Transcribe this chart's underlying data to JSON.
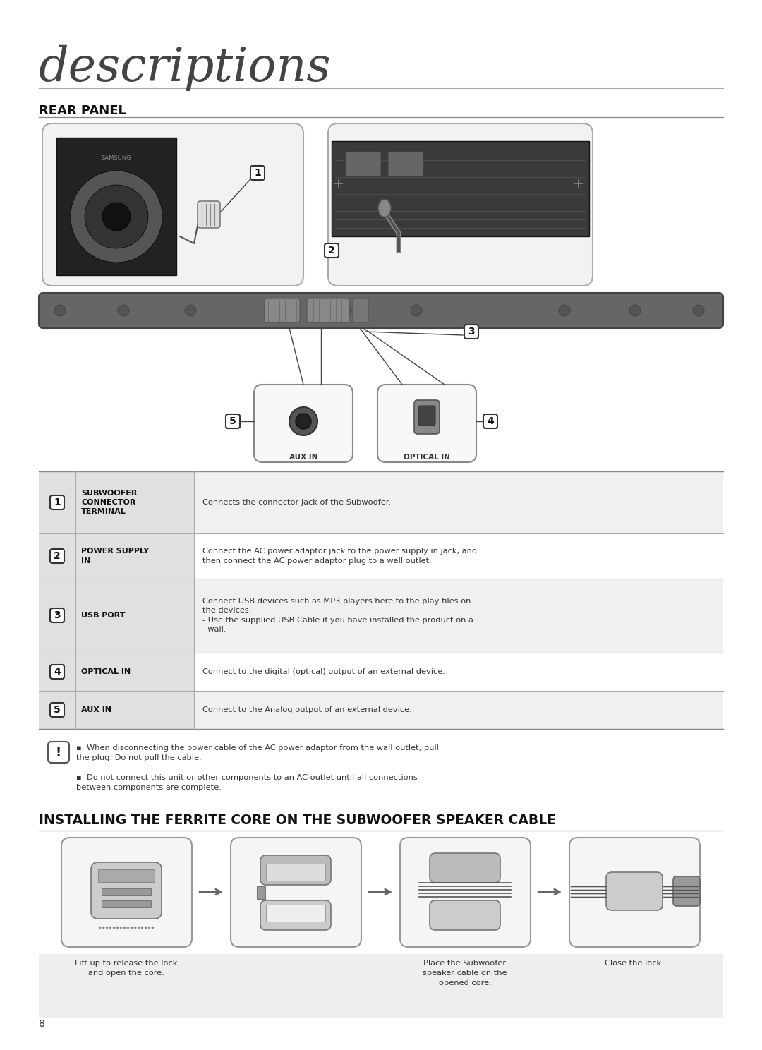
{
  "bg_color": "#ffffff",
  "title_main": "descriptions",
  "title_main_fontsize": 48,
  "title_main_color": "#444444",
  "section1_title": "REAR PANEL",
  "section2_title": "INSTALLING THE FERRITE CORE ON THE SUBWOOFER SPEAKER CABLE",
  "table_rows": [
    {
      "num": "1",
      "label": "SUBWOOFER\nCONNECTOR\nTERMINAL",
      "desc": "Connects the connector jack of the Subwoofer."
    },
    {
      "num": "2",
      "label": "POWER SUPPLY\nIN",
      "desc": "Connect the AC power adaptor jack to the power supply in jack, and\nthen connect the AC power adaptor plug to a wall outlet."
    },
    {
      "num": "3",
      "label": "USB PORT",
      "desc": "Connect USB devices such as MP3 players here to the play files on\nthe devices.\n- Use the supplied USB Cable if you have installed the product on a\n  wall."
    },
    {
      "num": "4",
      "label": "OPTICAL IN",
      "desc": "Connect to the digital (optical) output of an external device."
    },
    {
      "num": "5",
      "label": "AUX IN",
      "desc": "Connect to the Analog output of an external device."
    }
  ],
  "caution_text1": "When disconnecting the power cable of the AC power adaptor from the wall outlet, pull\nthe plug. Do not pull the cable.",
  "caution_text2": "Do not connect this unit or other components to an AC outlet until all connections\nbetween components are complete.",
  "ferrite_captions": [
    "Lift up to release the lock\nand open the core.",
    "",
    "Place the Subwoofer\nspeaker cable on the\nopened core.",
    "Close the lock."
  ],
  "page_num": "8"
}
